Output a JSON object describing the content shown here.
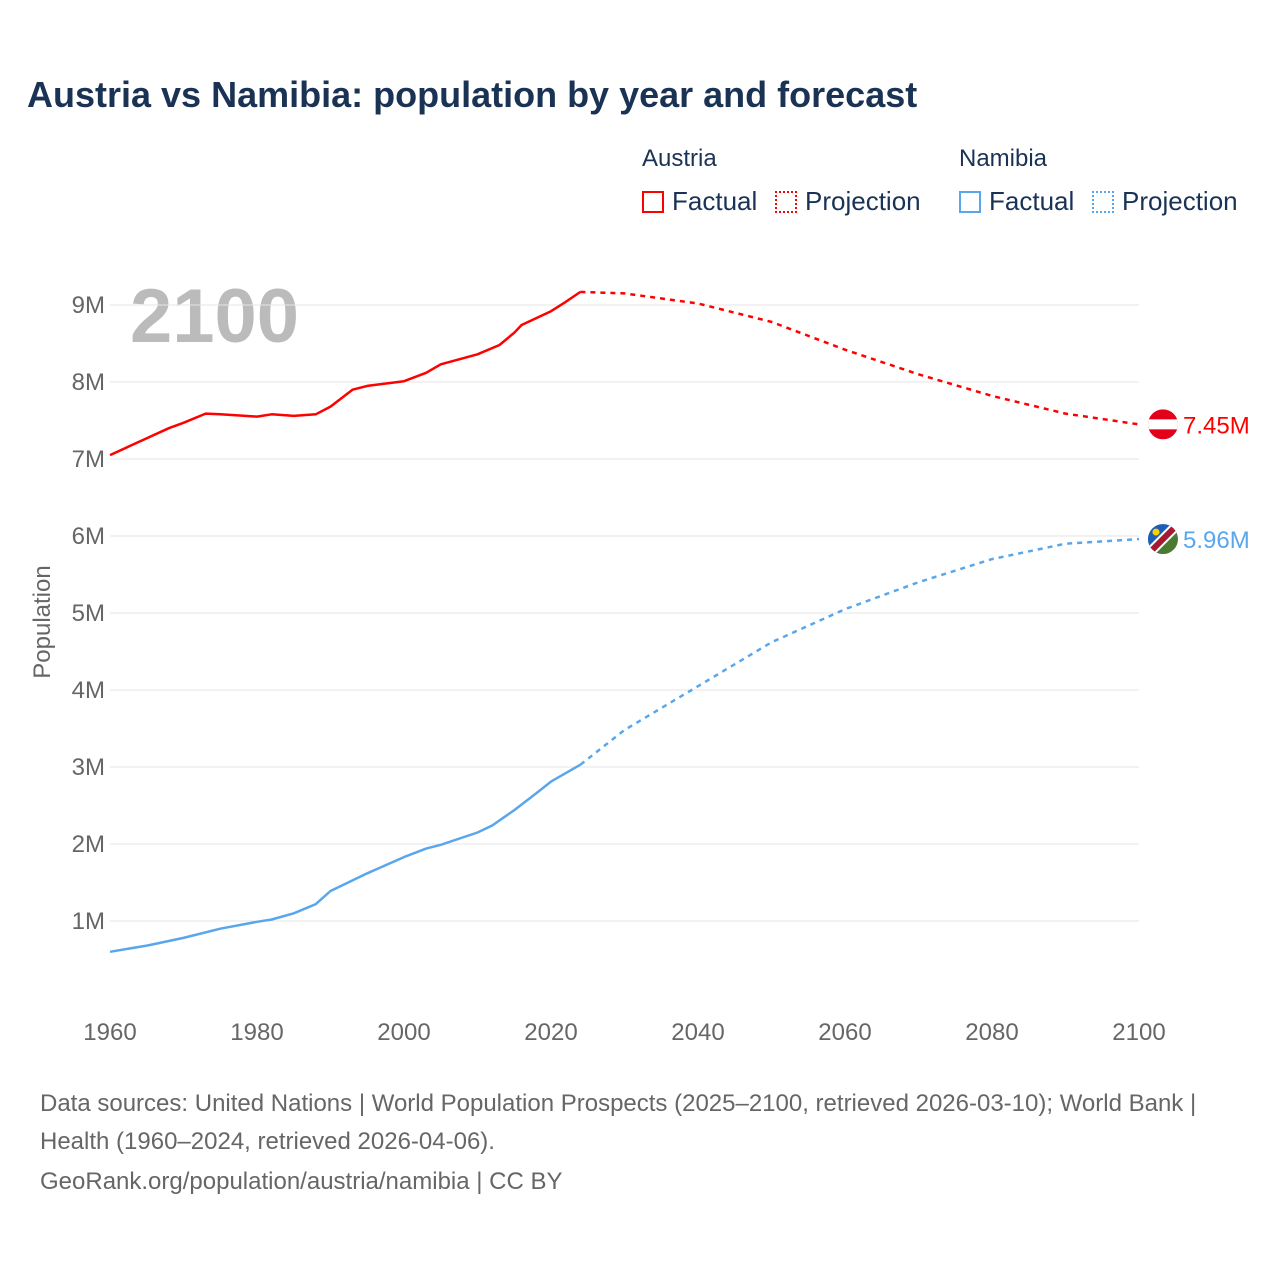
{
  "title": "Austria vs Namibia: population by year and forecast",
  "legend": {
    "austria": {
      "label": "Austria",
      "factual": "Factual",
      "projection": "Projection",
      "color": "#ff0000"
    },
    "namibia": {
      "label": "Namibia",
      "factual": "Factual",
      "projection": "Projection",
      "color": "#5aa6ec"
    }
  },
  "year_label": "2100",
  "footer": {
    "sources": "Data sources: United Nations | World Population Prospects (2025–2100, retrieved 2026-03-10); World Bank | Health (1960–2024, retrieved 2026-04-06).",
    "credit": "GeoRank.org/population/austria/namibia | CC BY"
  },
  "chart_data": {
    "type": "line",
    "title": "Austria vs Namibia: population by year and forecast",
    "xlabel": "",
    "ylabel": "Population",
    "xlim": [
      1960,
      2100
    ],
    "ylim": [
      0,
      9.5
    ],
    "x_ticks": [
      "1960",
      "1980",
      "2000",
      "2020",
      "2040",
      "2060",
      "2080",
      "2100"
    ],
    "y_ticks": [
      "1M",
      "2M",
      "3M",
      "4M",
      "5M",
      "6M",
      "7M",
      "8M",
      "9M"
    ],
    "series": [
      {
        "name": "Austria",
        "part": "Factual",
        "color": "#ff0000",
        "points": [
          [
            1960,
            7.05
          ],
          [
            1965,
            7.27
          ],
          [
            1968,
            7.4
          ],
          [
            1970,
            7.47
          ],
          [
            1973,
            7.59
          ],
          [
            1975,
            7.58
          ],
          [
            1980,
            7.55
          ],
          [
            1982,
            7.58
          ],
          [
            1985,
            7.56
          ],
          [
            1988,
            7.58
          ],
          [
            1990,
            7.68
          ],
          [
            1993,
            7.9
          ],
          [
            1995,
            7.95
          ],
          [
            2000,
            8.01
          ],
          [
            2003,
            8.12
          ],
          [
            2005,
            8.23
          ],
          [
            2010,
            8.36
          ],
          [
            2013,
            8.48
          ],
          [
            2015,
            8.64
          ],
          [
            2016,
            8.74
          ],
          [
            2020,
            8.92
          ],
          [
            2022,
            9.04
          ],
          [
            2024,
            9.17
          ]
        ]
      },
      {
        "name": "Austria",
        "part": "Projection",
        "color": "#ff0000",
        "points": [
          [
            2024,
            9.17
          ],
          [
            2030,
            9.15
          ],
          [
            2040,
            9.02
          ],
          [
            2050,
            8.78
          ],
          [
            2060,
            8.42
          ],
          [
            2070,
            8.1
          ],
          [
            2080,
            7.82
          ],
          [
            2090,
            7.59
          ],
          [
            2100,
            7.45
          ]
        ]
      },
      {
        "name": "Namibia",
        "part": "Factual",
        "color": "#5aa6ec",
        "points": [
          [
            1960,
            0.6
          ],
          [
            1965,
            0.68
          ],
          [
            1970,
            0.78
          ],
          [
            1975,
            0.9
          ],
          [
            1980,
            0.99
          ],
          [
            1982,
            1.02
          ],
          [
            1985,
            1.1
          ],
          [
            1988,
            1.22
          ],
          [
            1990,
            1.39
          ],
          [
            1995,
            1.62
          ],
          [
            2000,
            1.83
          ],
          [
            2003,
            1.94
          ],
          [
            2005,
            1.99
          ],
          [
            2010,
            2.15
          ],
          [
            2012,
            2.24
          ],
          [
            2015,
            2.44
          ],
          [
            2018,
            2.66
          ],
          [
            2020,
            2.81
          ],
          [
            2024,
            3.03
          ]
        ]
      },
      {
        "name": "Namibia",
        "part": "Projection",
        "color": "#5aa6ec",
        "points": [
          [
            2024,
            3.03
          ],
          [
            2030,
            3.48
          ],
          [
            2040,
            4.05
          ],
          [
            2050,
            4.62
          ],
          [
            2060,
            5.05
          ],
          [
            2070,
            5.4
          ],
          [
            2080,
            5.7
          ],
          [
            2090,
            5.9
          ],
          [
            2100,
            5.96
          ]
        ]
      }
    ],
    "end_labels": [
      {
        "name": "Austria",
        "value": "7.45M"
      },
      {
        "name": "Namibia",
        "value": "5.96M"
      }
    ]
  }
}
